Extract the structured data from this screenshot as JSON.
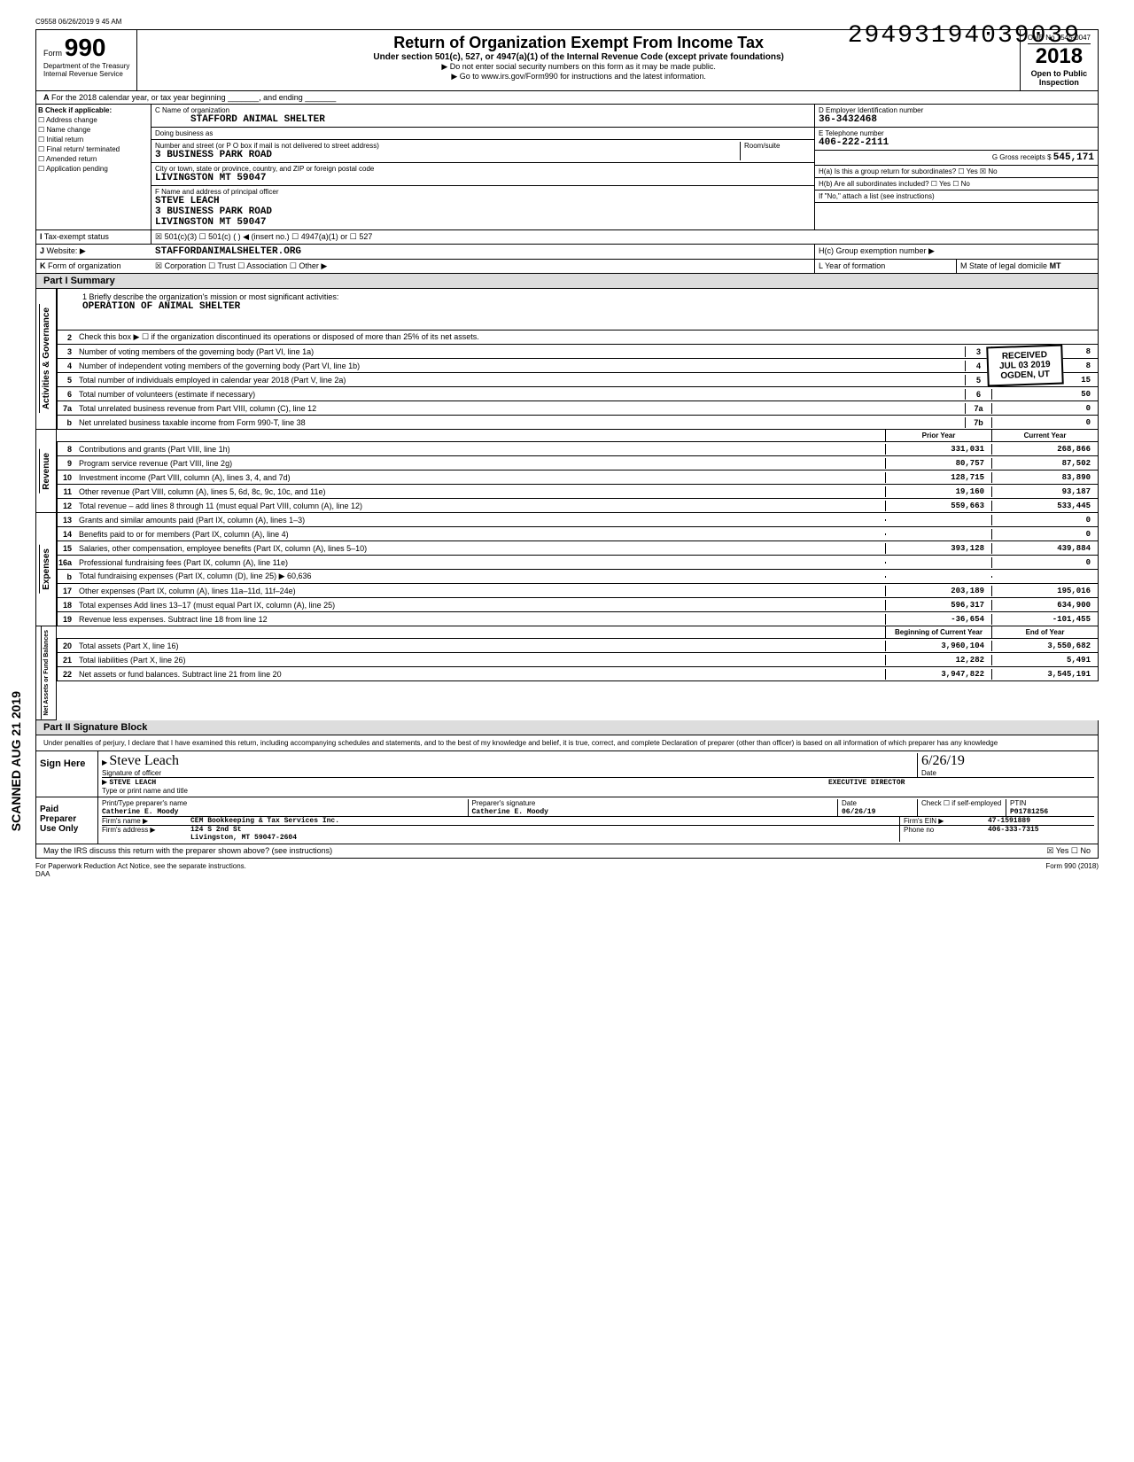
{
  "timestamp": "C9558 06/26/2019 9 45 AM",
  "stamp_number": "29493194039039",
  "form": {
    "label": "Form",
    "number": "990",
    "dept1": "Department of the Treasury",
    "dept2": "Internal Revenue Service"
  },
  "title": {
    "main": "Return of Organization Exempt From Income Tax",
    "sub": "Under section 501(c), 527, or 4947(a)(1) of the Internal Revenue Code (except private foundations)",
    "inst1": "▶ Do not enter social security numbers on this form as it may be made public.",
    "inst2": "▶ Go to www.irs.gov/Form990 for instructions and the latest information."
  },
  "year_box": {
    "omb": "OMB No 1545-0047",
    "year": "2018",
    "open": "Open to Public",
    "insp": "Inspection"
  },
  "row_a": "For the 2018 calendar year, or tax year beginning _______, and ending _______",
  "checkboxes": {
    "header": "Check if applicable:",
    "items": [
      "Address change",
      "Name change",
      "Initial return",
      "Final return/ terminated",
      "Amended return",
      "Application pending"
    ]
  },
  "org": {
    "name_label": "C Name of organization",
    "name": "STAFFORD ANIMAL SHELTER",
    "dba_label": "Doing business as",
    "addr_label": "Number and street (or P O box if mail is not delivered to street address)",
    "room_label": "Room/suite",
    "addr": "3 BUSINESS PARK ROAD",
    "city_label": "City or town, state or province, country, and ZIP or foreign postal code",
    "city": "LIVINGSTON           MT 59047",
    "officer_label": "F Name and address of principal officer",
    "officer_name": "STEVE LEACH",
    "officer_addr": "3 BUSINESS PARK ROAD",
    "officer_city": "LIVINGSTON            MT  59047"
  },
  "right": {
    "ein_label": "D Employer Identification number",
    "ein": "36-3432468",
    "phone_label": "E Telephone number",
    "phone": "406-222-2111",
    "gross_label": "G Gross receipts $",
    "gross": "545,171",
    "ha_label": "H(a) Is this a group return for subordinates?",
    "hb_label": "H(b) Are all subordinates included?",
    "hc_label": "If \"No,\" attach a list (see instructions)",
    "hc_group": "H(c) Group exemption number ▶"
  },
  "tax_status": {
    "label": "Tax-exempt status",
    "checked": "501(c)(3)",
    "opts": [
      "501(c)",
      "4947(a)(1) or",
      "527"
    ]
  },
  "website": {
    "label": "Website: ▶",
    "value": "STAFFORDANIMALSHELTER.ORG"
  },
  "form_org": {
    "label": "Form of organization",
    "checked": "Corporation",
    "opts": [
      "Trust",
      "Association",
      "Other ▶"
    ],
    "year_label": "L Year of formation",
    "state_label": "M State of legal domicile",
    "state": "MT"
  },
  "received": {
    "line1": "RECEIVED",
    "line2": "JUL 03 2019",
    "line3": "OGDEN, UT"
  },
  "part1": "Part I    Summary",
  "mission": {
    "label": "1  Briefly describe the organization's mission or most significant activities:",
    "value": "OPERATION OF ANIMAL SHELTER"
  },
  "summary_lines": {
    "line2": "Check this box ▶ ☐ if the organization discontinued its operations or disposed of more than 25% of its net assets.",
    "line3": {
      "text": "Number of voting members of the governing body (Part VI, line 1a)",
      "box": "3",
      "val": "8"
    },
    "line4": {
      "text": "Number of independent voting members of the governing body (Part VI, line 1b)",
      "box": "4",
      "val": "8"
    },
    "line5": {
      "text": "Total number of individuals employed in calendar year 2018 (Part V, line 2a)",
      "box": "5",
      "val": "15"
    },
    "line6": {
      "text": "Total number of volunteers (estimate if necessary)",
      "box": "6",
      "val": "50"
    },
    "line7a": {
      "text": "Total unrelated business revenue from Part VIII, column (C), line 12",
      "box": "7a",
      "val": "0"
    },
    "line7b": {
      "text": "Net unrelated business taxable income from Form 990-T, line 38",
      "box": "7b",
      "val": "0"
    }
  },
  "revenue_header": {
    "prior": "Prior Year",
    "current": "Current Year"
  },
  "revenue": [
    {
      "num": "8",
      "text": "Contributions and grants (Part VIII, line 1h)",
      "prior": "331,031",
      "current": "268,866"
    },
    {
      "num": "9",
      "text": "Program service revenue (Part VIII, line 2g)",
      "prior": "80,757",
      "current": "87,502"
    },
    {
      "num": "10",
      "text": "Investment income (Part VIII, column (A), lines 3, 4, and 7d)",
      "prior": "128,715",
      "current": "83,890"
    },
    {
      "num": "11",
      "text": "Other revenue (Part VIII, column (A), lines 5, 6d, 8c, 9c, 10c, and 11e)",
      "prior": "19,160",
      "current": "93,187"
    },
    {
      "num": "12",
      "text": "Total revenue – add lines 8 through 11 (must equal Part VIII, column (A), line 12)",
      "prior": "559,663",
      "current": "533,445"
    }
  ],
  "expenses": [
    {
      "num": "13",
      "text": "Grants and similar amounts paid (Part IX, column (A), lines 1–3)",
      "prior": "",
      "current": "0"
    },
    {
      "num": "14",
      "text": "Benefits paid to or for members (Part IX, column (A), line 4)",
      "prior": "",
      "current": "0"
    },
    {
      "num": "15",
      "text": "Salaries, other compensation, employee benefits (Part IX, column (A), lines 5–10)",
      "prior": "393,128",
      "current": "439,884"
    },
    {
      "num": "16a",
      "text": "Professional fundraising fees (Part IX, column (A), line 11e)",
      "prior": "",
      "current": "0"
    },
    {
      "num": "b",
      "text": "Total fundraising expenses (Part IX, column (D), line 25) ▶        60,636",
      "prior": "",
      "current": ""
    },
    {
      "num": "17",
      "text": "Other expenses (Part IX, column (A), lines 11a–11d, 11f–24e)",
      "prior": "203,189",
      "current": "195,016"
    },
    {
      "num": "18",
      "text": "Total expenses Add lines 13–17 (must equal Part IX, column (A), line 25)",
      "prior": "596,317",
      "current": "634,900"
    },
    {
      "num": "19",
      "text": "Revenue less expenses. Subtract line 18 from line 12",
      "prior": "-36,654",
      "current": "-101,455"
    }
  ],
  "net_header": {
    "prior": "Beginning of Current Year",
    "current": "End of Year"
  },
  "net": [
    {
      "num": "20",
      "text": "Total assets (Part X, line 16)",
      "prior": "3,960,104",
      "current": "3,550,682"
    },
    {
      "num": "21",
      "text": "Total liabilities (Part X, line 26)",
      "prior": "12,282",
      "current": "5,491"
    },
    {
      "num": "22",
      "text": "Net assets or fund balances. Subtract line 21 from line 20",
      "prior": "3,947,822",
      "current": "3,545,191"
    }
  ],
  "part2": "Part II    Signature Block",
  "perjury": "Under penalties of perjury, I declare that I have examined this return, including accompanying schedules and statements, and to the best of my knowledge and belief, it is true, correct, and complete Declaration of preparer (other than officer) is based on all information of which preparer has any knowledge",
  "sign": {
    "label": "Sign Here",
    "sig_label": "Signature of officer",
    "date_label": "Date",
    "date_value": "6/26/19",
    "name": "STEVE LEACH",
    "title": "EXECUTIVE DIRECTOR",
    "type_label": "Type or print name and title"
  },
  "preparer": {
    "label": "Paid Preparer Use Only",
    "name_label": "Print/Type preparer's name",
    "name": "Catherine E. Moody",
    "sig_label": "Preparer's signature",
    "sig": "Catherine E. Moody",
    "date_label": "Date",
    "date": "06/26/19",
    "self_label": "Check ☐ if self-employed",
    "ptin_label": "PTIN",
    "ptin": "P01781256",
    "firm_label": "Firm's name ▶",
    "firm": "CEM Bookkeeping & Tax Services Inc.",
    "ein_label": "Firm's EIN ▶",
    "ein": "47-1591889",
    "addr_label": "Firm's address ▶",
    "addr1": "124 S 2nd St",
    "addr2": "Livingston, MT   59047-2604",
    "phone_label": "Phone no",
    "phone": "406-333-7315"
  },
  "discuss": "May the IRS discuss this return with the preparer shown above? (see instructions)",
  "footer": {
    "paperwork": "For Paperwork Reduction Act Notice, see the separate instructions.",
    "daa": "DAA",
    "form_ref": "Form 990 (2018)"
  },
  "side_labels": {
    "activities": "Activities & Governance",
    "revenue": "Revenue",
    "expenses": "Expenses",
    "net": "Net Assets or Fund Balances"
  },
  "scan_stamp": "SCANNED AUG 21 2019"
}
